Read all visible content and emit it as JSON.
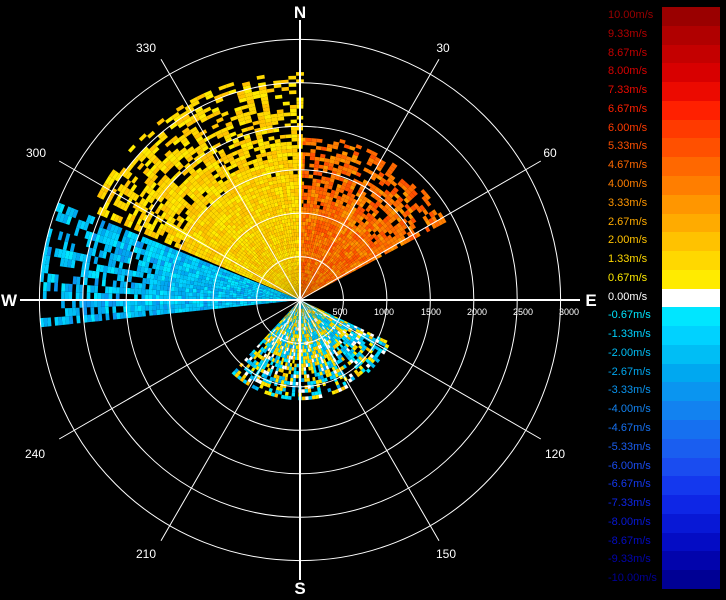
{
  "chart_data": {
    "type": "polar-ppi",
    "compass_labels": {
      "north": "N",
      "east": "E",
      "south": "S",
      "west": "W"
    },
    "azimuth_labels": [
      "30",
      "60",
      "120",
      "150",
      "210",
      "240",
      "300",
      "330"
    ],
    "range_labels": [
      "500",
      "1000",
      "1500",
      "2000",
      "2500",
      "3000"
    ],
    "range_max": 3200,
    "grid": true,
    "legend_placement": "right",
    "colorbar": {
      "unit": "m/s",
      "entries": [
        {
          "label": "10.00m/s",
          "value": 10.0,
          "color": "#9a0000"
        },
        {
          "label": "9.33m/s",
          "value": 9.33,
          "color": "#b00000"
        },
        {
          "label": "8.67m/s",
          "value": 8.67,
          "color": "#c40000"
        },
        {
          "label": "8.00m/s",
          "value": 8.0,
          "color": "#d80000"
        },
        {
          "label": "7.33m/s",
          "value": 7.33,
          "color": "#ec0a00"
        },
        {
          "label": "6.67m/s",
          "value": 6.67,
          "color": "#ff2000"
        },
        {
          "label": "6.00m/s",
          "value": 6.0,
          "color": "#ff3a00"
        },
        {
          "label": "5.33m/s",
          "value": 5.33,
          "color": "#ff5000"
        },
        {
          "label": "4.67m/s",
          "value": 4.67,
          "color": "#ff6800"
        },
        {
          "label": "4.00m/s",
          "value": 4.0,
          "color": "#ff7e00"
        },
        {
          "label": "3.33m/s",
          "value": 3.33,
          "color": "#ff9600"
        },
        {
          "label": "2.67m/s",
          "value": 2.67,
          "color": "#ffab00"
        },
        {
          "label": "2.00m/s",
          "value": 2.0,
          "color": "#ffc200"
        },
        {
          "label": "1.33m/s",
          "value": 1.33,
          "color": "#ffd800"
        },
        {
          "label": "0.67m/s",
          "value": 0.67,
          "color": "#ffeb00"
        },
        {
          "label": "0.00m/s",
          "value": 0.0,
          "color": "#ffffff"
        },
        {
          "label": "-0.67m/s",
          "value": -0.67,
          "color": "#00e6ff"
        },
        {
          "label": "-1.33m/s",
          "value": -1.33,
          "color": "#00d2ff"
        },
        {
          "label": "-2.00m/s",
          "value": -2.0,
          "color": "#00bef5"
        },
        {
          "label": "-2.67m/s",
          "value": -2.67,
          "color": "#00a8f0"
        },
        {
          "label": "-3.33m/s",
          "value": -3.33,
          "color": "#0a95f0"
        },
        {
          "label": "-4.00m/s",
          "value": -4.0,
          "color": "#1282f0"
        },
        {
          "label": "-4.67m/s",
          "value": -4.67,
          "color": "#1670f0"
        },
        {
          "label": "-5.33m/s",
          "value": -5.33,
          "color": "#1a5ef0"
        },
        {
          "label": "-6.00m/s",
          "value": -6.0,
          "color": "#1a4cf0"
        },
        {
          "label": "-6.67m/s",
          "value": -6.67,
          "color": "#1438ee"
        },
        {
          "label": "-7.33m/s",
          "value": -7.33,
          "color": "#0e26e6"
        },
        {
          "label": "-8.00m/s",
          "value": -8.0,
          "color": "#0818d6"
        },
        {
          "label": "-8.67m/s",
          "value": -8.67,
          "color": "#040cc4"
        },
        {
          "label": "-9.33m/s",
          "value": -9.33,
          "color": "#0204ac"
        },
        {
          "label": "-10.00m/s",
          "value": -10.0,
          "color": "#000094"
        }
      ]
    },
    "echo_regions": [
      {
        "sector": "north-to-northeast",
        "az_start": 0,
        "az_end": 62,
        "range_max": 1900,
        "velocity_min": 3.3,
        "velocity_max": 5.5
      },
      {
        "sector": "northwest-to-north",
        "az_start": 293,
        "az_end": 360,
        "range_max": 2600,
        "velocity_min": 0.6,
        "velocity_max": 2.2
      },
      {
        "sector": "west",
        "az_start": 264,
        "az_end": 292,
        "range_max": 3000,
        "velocity_min": -3.3,
        "velocity_max": -0.6
      },
      {
        "sector": "near-field-south",
        "az_start": 115,
        "az_end": 222,
        "range_max": 1150,
        "velocity_min": -2.7,
        "velocity_max": 2.0
      }
    ]
  }
}
